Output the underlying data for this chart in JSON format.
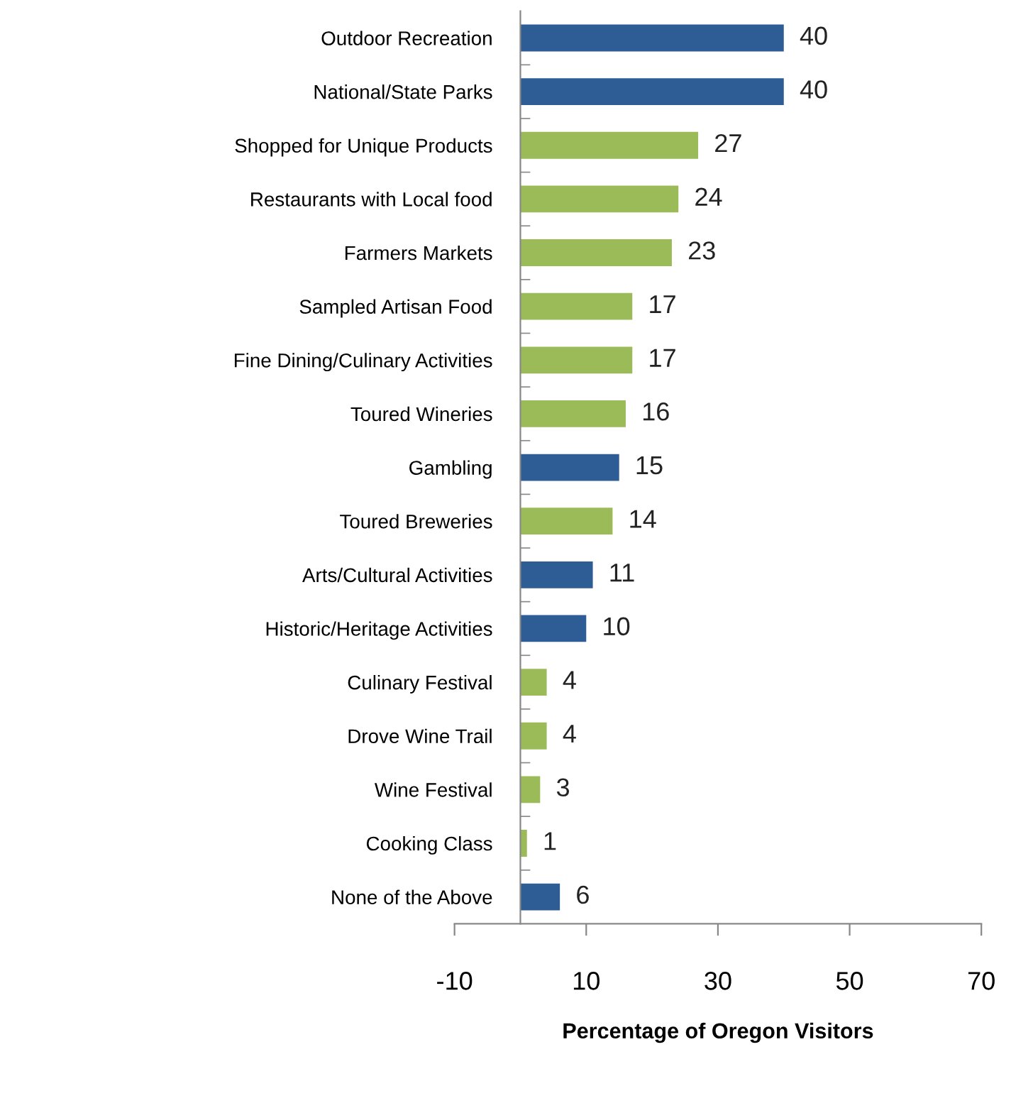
{
  "chart_data": {
    "type": "bar",
    "orientation": "horizontal",
    "xlabel": "Percentage of Oregon Visitors",
    "categories": [
      "Outdoor Recreation",
      "National/State Parks",
      "Shopped for Unique Products",
      "Restaurants with Local food",
      "Farmers Markets",
      "Sampled Artisan Food",
      "Fine Dining/Culinary Activities",
      "Toured Wineries",
      "Gambling",
      "Toured Breweries",
      "Arts/Cultural Activities",
      "Historic/Heritage Activities",
      "Culinary Festival",
      "Drove Wine Trail",
      "Wine Festival",
      "Cooking Class",
      "None of the Above"
    ],
    "values": [
      40,
      40,
      27,
      24,
      23,
      17,
      17,
      16,
      15,
      14,
      11,
      10,
      4,
      4,
      3,
      1,
      6
    ],
    "colors": [
      "#2e5c94",
      "#2e5c94",
      "#9bbb59",
      "#9bbb59",
      "#9bbb59",
      "#9bbb59",
      "#9bbb59",
      "#9bbb59",
      "#2e5c94",
      "#9bbb59",
      "#2e5c94",
      "#2e5c94",
      "#9bbb59",
      "#9bbb59",
      "#9bbb59",
      "#9bbb59",
      "#2e5c94"
    ],
    "data_labels": true,
    "xlim": [
      -10,
      70
    ],
    "xticks": [
      -10,
      10,
      30,
      50,
      70
    ],
    "grid": false,
    "legend": false
  }
}
